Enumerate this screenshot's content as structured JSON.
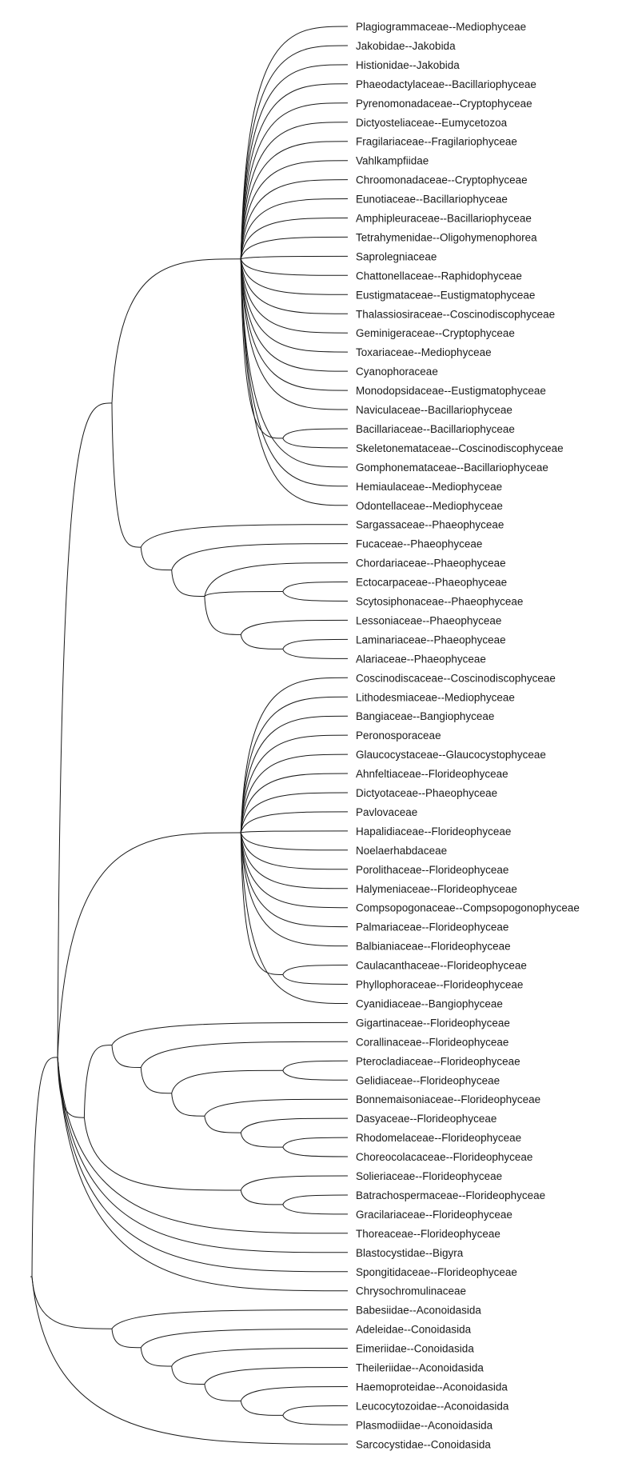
{
  "chart_data": {
    "type": "dendrogram",
    "style": "curved-branches",
    "line_color": "#1a1a1a",
    "background": "#ffffff",
    "tips": [
      "Plagiogrammaceae--Mediophyceae",
      "Jakobidae--Jakobida",
      "Histionidae--Jakobida",
      "Phaeodactylaceae--Bacillariophyceae",
      "Pyrenomonadaceae--Cryptophyceae",
      "Dictyosteliaceae--Eumycetozoa",
      "Fragilariaceae--Fragilariophyceae",
      "Vahlkampfiidae",
      "Chroomonadaceae--Cryptophyceae",
      "Eunotiaceae--Bacillariophyceae",
      "Amphipleuraceae--Bacillariophyceae",
      "Tetrahymenidae--Oligohymenophorea",
      "Saprolegniaceae",
      "Chattonellaceae--Raphidophyceae",
      "Eustigmataceae--Eustigmatophyceae",
      "Thalassiosiraceae--Coscinodiscophyceae",
      "Geminigeraceae--Cryptophyceae",
      "Toxariaceae--Mediophyceae",
      "Cyanophoraceae",
      "Monodopsidaceae--Eustigmatophyceae",
      "Naviculaceae--Bacillariophyceae",
      "Bacillariaceae--Bacillariophyceae",
      "Skeletonemataceae--Coscinodiscophyceae",
      "Gomphonemataceae--Bacillariophyceae",
      "Hemiaulaceae--Mediophyceae",
      "Odontellaceae--Mediophyceae",
      "Sargassaceae--Phaeophyceae",
      "Fucaceae--Phaeophyceae",
      "Chordariaceae--Phaeophyceae",
      "Ectocarpaceae--Phaeophyceae",
      "Scytosiphonaceae--Phaeophyceae",
      "Lessoniaceae--Phaeophyceae",
      "Laminariaceae--Phaeophyceae",
      "Alariaceae--Phaeophyceae",
      "Coscinodiscaceae--Coscinodiscophyceae",
      "Lithodesmiaceae--Mediophyceae",
      "Bangiaceae--Bangiophyceae",
      "Peronosporaceae",
      "Glaucocystaceae--Glaucocystophyceae",
      "Ahnfeltiaceae--Florideophyceae",
      "Dictyotaceae--Phaeophyceae",
      "Pavlovaceae",
      "Hapalidiaceae--Florideophyceae",
      "Noelaerhabdaceae",
      "Porolithaceae--Florideophyceae",
      "Halymeniaceae--Florideophyceae",
      "Compsopogonaceae--Compsopogonophyceae",
      "Palmariaceae--Florideophyceae",
      "Balbianiaceae--Florideophyceae",
      "Caulacanthaceae--Florideophyceae",
      "Phyllophoraceae--Florideophyceae",
      "Cyanidiaceae--Bangiophyceae",
      "Gigartinaceae--Florideophyceae",
      "Corallinaceae--Florideophyceae",
      "Pterocladiaceae--Florideophyceae",
      "Gelidiaceae--Florideophyceae",
      "Bonnemaisoniaceae--Florideophyceae",
      "Dasyaceae--Florideophyceae",
      "Rhodomelaceae--Florideophyceae",
      "Choreocolacaceae--Florideophyceae",
      "Solieriaceae--Florideophyceae",
      "Batrachospermaceae--Florideophyceae",
      "Gracilariaceae--Florideophyceae",
      "Thoreaceae--Florideophyceae",
      "Blastocystidae--Bigyra",
      "Spongitidaceae--Florideophyceae",
      "Chrysochromulinaceae",
      "Babesiidae--Aconoidasida",
      "Adeleidae--Conoidasida",
      "Eimeriidae--Conoidasida",
      "Theileriidae--Aconoidasida",
      "Haemoproteidae--Aconoidasida",
      "Leucocytozoidae--Aconoidasida",
      "Plasmodiidae--Aconoidasida",
      "Sarcocystidae--Conoidasida"
    ],
    "tree": [
      [
        [
          [
            [
              0
            ],
            [
              1
            ],
            [
              2
            ],
            [
              3
            ],
            [
              4
            ],
            [
              5
            ],
            [
              6
            ],
            [
              7
            ],
            [
              8
            ],
            [
              9
            ],
            [
              10
            ],
            [
              11
            ],
            [
              12
            ],
            [
              13
            ],
            [
              14
            ],
            [
              15
            ],
            [
              16
            ],
            [
              17
            ],
            [
              18
            ],
            [
              19
            ],
            [
              20
            ],
            [
              [
                21
              ],
              [
                22
              ]
            ],
            [
              23
            ],
            [
              24
            ],
            [
              25
            ]
          ],
          [
            [
              26
            ],
            [
              [
                27
              ],
              [
                [
                  28
                ],
                [
                  [
                    29
                  ],
                  [
                    30
                  ]
                ],
                [
                  [
                    31
                  ],
                  [
                    [
                      32
                    ],
                    [
                      33
                    ]
                  ]
                ]
              ]
            ]
          ]
        ],
        [
          [
            34
          ],
          [
            35
          ],
          [
            36
          ],
          [
            37
          ],
          [
            38
          ],
          [
            39
          ],
          [
            40
          ],
          [
            41
          ],
          [
            42
          ],
          [
            43
          ],
          [
            44
          ],
          [
            45
          ],
          [
            46
          ],
          [
            47
          ],
          [
            48
          ],
          [
            [
              49
            ],
            [
              50
            ]
          ],
          [
            51
          ]
        ],
        [
          [
            [
              52
            ],
            [
              [
                53
              ],
              [
                [
                  [
                    54
                  ],
                  [
                    55
                  ]
                ],
                [
                  [
                    56
                  ],
                  [
                    [
                      57
                    ],
                    [
                      [
                        58
                      ],
                      [
                        59
                      ]
                    ]
                  ]
                ]
              ]
            ]
          ],
          [
            [
              60
            ],
            [
              [
                61
              ],
              [
                62
              ]
            ]
          ]
        ],
        [
          63
        ],
        [
          64
        ],
        [
          65
        ],
        [
          66
        ]
      ],
      [
        [
          67
        ],
        [
          [
            68
          ],
          [
            [
              69
            ],
            [
              [
                70
              ],
              [
                [
                  71
                ],
                [
                  [
                    72
                  ],
                  [
                    73
                  ]
                ]
              ]
            ]
          ]
        ]
      ],
      [
        74
      ]
    ]
  }
}
